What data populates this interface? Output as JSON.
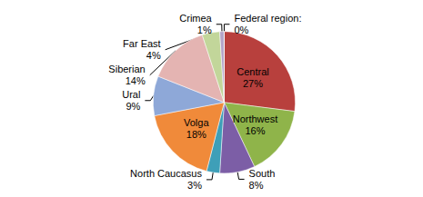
{
  "chart_data": {
    "type": "pie",
    "categories": [
      "Central",
      "Northwest",
      "South",
      "North Caucasus",
      "Volga",
      "Ural",
      "Siberian",
      "Far East",
      "Crimea",
      "Federal region:"
    ],
    "values": [
      27,
      16,
      8,
      3,
      18,
      9,
      14,
      4,
      1,
      0
    ],
    "value_labels": [
      "27%",
      "16%",
      "8%",
      "3%",
      "18%",
      "9%",
      "14%",
      "4%",
      "1%",
      "0%"
    ],
    "colors": [
      "#b8403d",
      "#8fb44a",
      "#7c5ea6",
      "#3e9fb8",
      "#f08a3a",
      "#8ea8d8",
      "#e4b4b2",
      "#c2d69a",
      "#b4a4c8",
      "#92c9dc"
    ],
    "data_labels": true
  }
}
